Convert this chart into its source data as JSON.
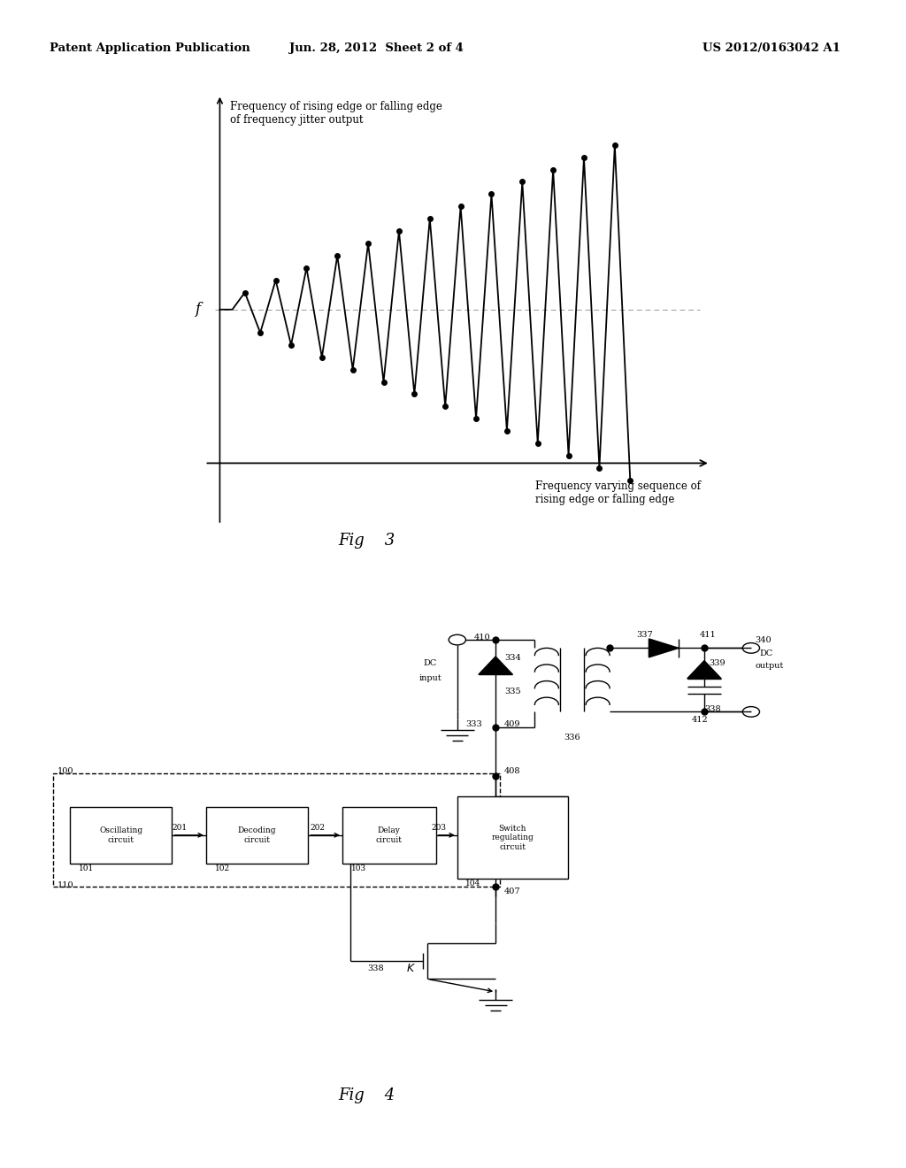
{
  "header_left": "Patent Application Publication",
  "header_mid": "Jun. 28, 2012  Sheet 2 of 4",
  "header_right": "US 2012/0163042 A1",
  "fig3_label": "Fig    3",
  "fig4_label": "Fig    4",
  "fig3_ylabel_line1": "Frequency of rising edge or falling edge",
  "fig3_ylabel_line2": "of frequency jitter output",
  "fig3_xlabel_line1": "Frequency varying sequence of",
  "fig3_xlabel_line2": "rising edge or falling edge",
  "fig3_f": "f",
  "lbl_osc": "Oscillating\ncircuit",
  "lbl_dec": "Decoding\ncircuit",
  "lbl_delay": "Delay\ncircuit",
  "lbl_sw": "Switch\nregulating\ncircuit",
  "lbl_dc_in": "DC\ninput",
  "lbl_dc_out": "DC\noutput",
  "bg": "#ffffff"
}
